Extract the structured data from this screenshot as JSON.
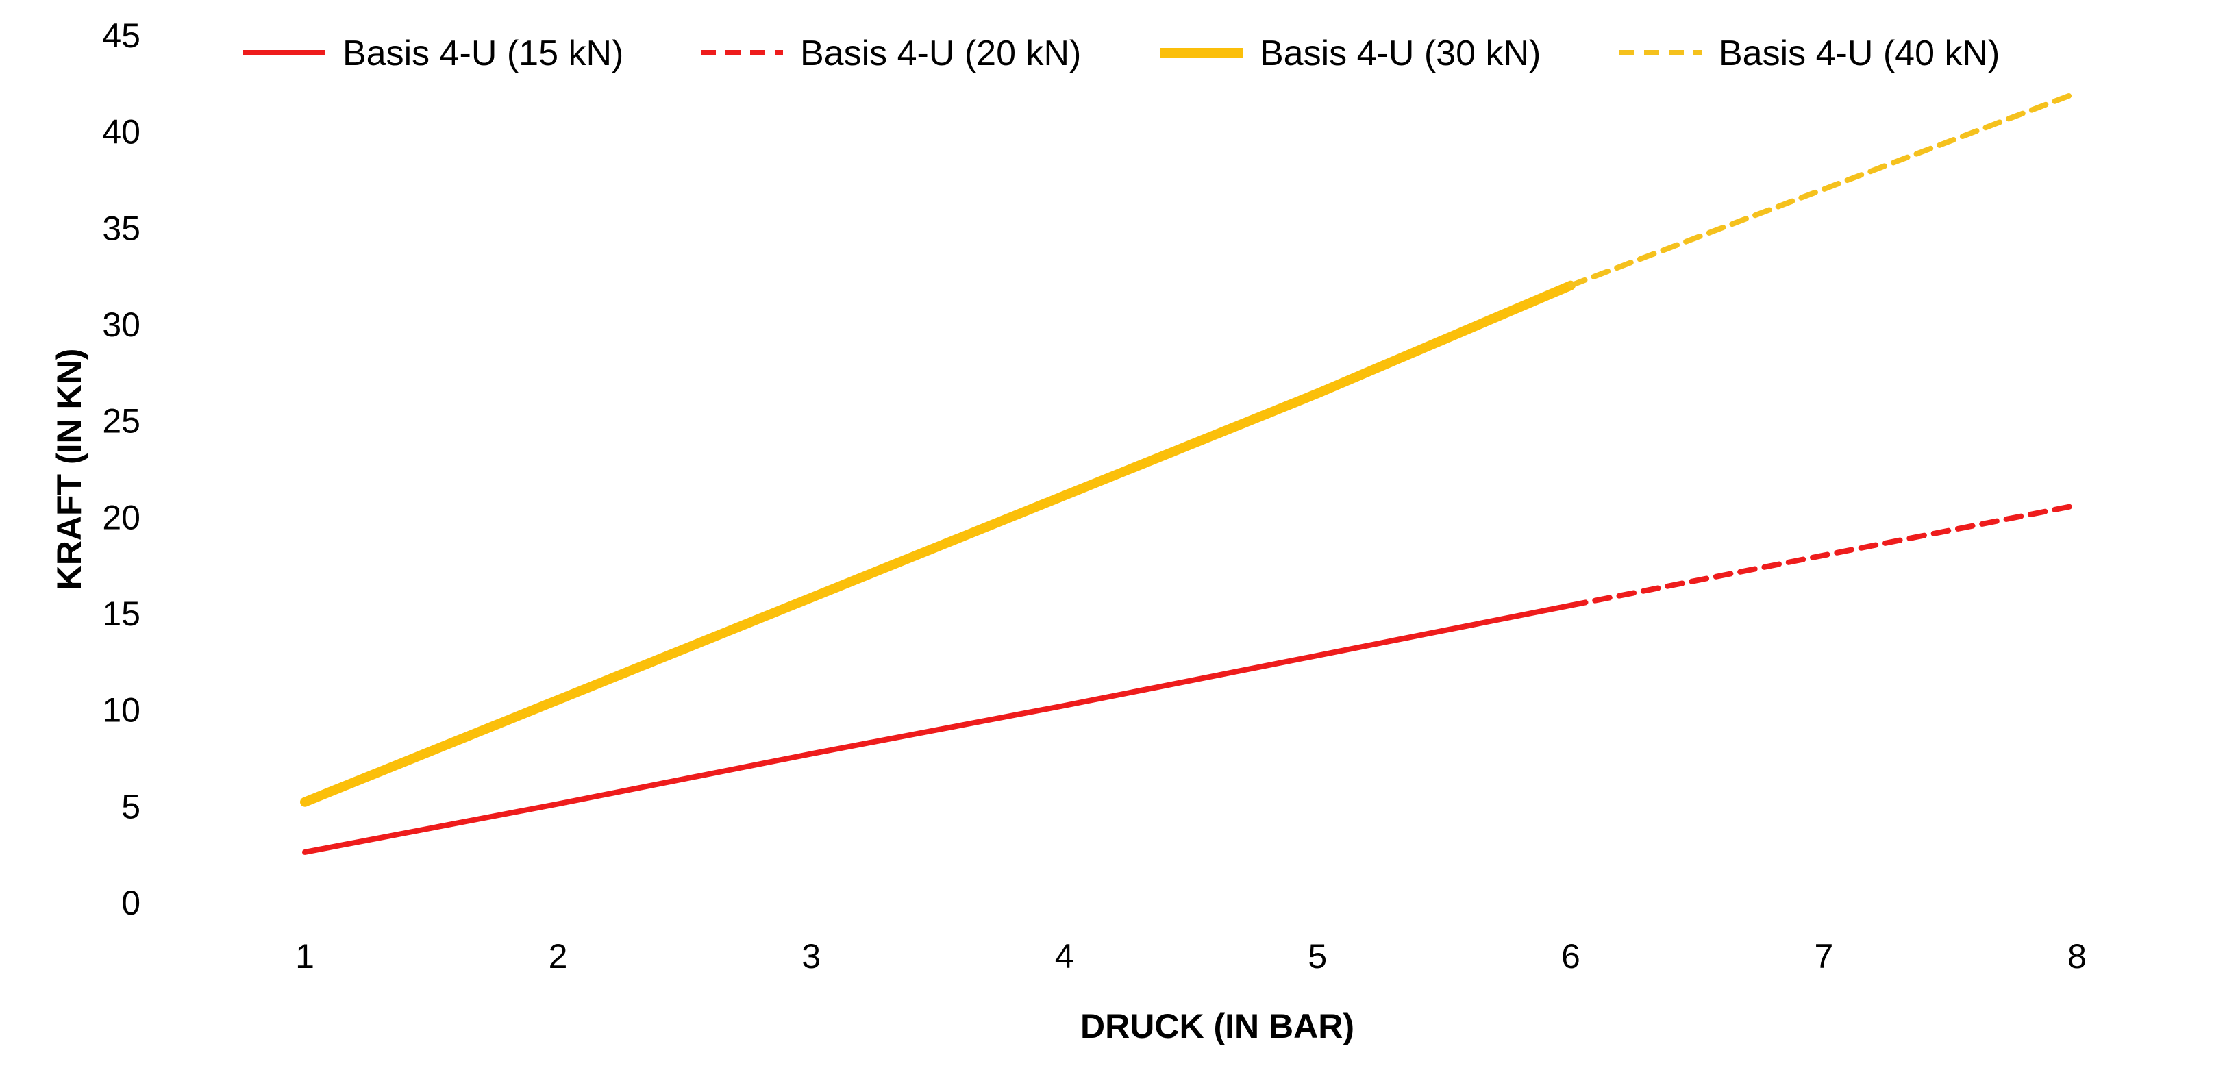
{
  "chart_data": {
    "type": "line",
    "title": "",
    "xlabel": "DRUCK (IN BAR)",
    "ylabel": "KRAFT (IN KN)",
    "x_ticks": [
      "1",
      "2",
      "3",
      "4",
      "5",
      "6",
      "7",
      "8"
    ],
    "y_ticks": [
      "0",
      "5",
      "10",
      "15",
      "20",
      "25",
      "30",
      "35",
      "40",
      "45"
    ],
    "xlim": [
      1,
      8
    ],
    "ylim": [
      0,
      45
    ],
    "grid": false,
    "legend_position": "top",
    "series": [
      {
        "name": "Basis 4-U (15 kN)",
        "color": "#ee1c1c",
        "style": "solid",
        "x": [
          1,
          2,
          3,
          4,
          5,
          6
        ],
        "y": [
          2.6,
          5.1,
          7.7,
          10.2,
          12.8,
          15.4
        ]
      },
      {
        "name": "Basis 4-U (20 kN)",
        "color": "#ee1c1c",
        "style": "dashed",
        "x": [
          6,
          7,
          8
        ],
        "y": [
          15.4,
          18.0,
          20.6
        ]
      },
      {
        "name": "Basis 4-U (30 kN)",
        "color": "#fbbf0a",
        "style": "solid-thick",
        "x": [
          1,
          2,
          3,
          4,
          5,
          6
        ],
        "y": [
          5.2,
          10.5,
          15.8,
          21.1,
          26.4,
          32.0
        ]
      },
      {
        "name": "Basis 4-U (40 kN)",
        "color": "#f5c11d",
        "style": "dashed",
        "x": [
          6,
          7,
          8
        ],
        "y": [
          32.0,
          37.0,
          42.0
        ]
      }
    ]
  }
}
